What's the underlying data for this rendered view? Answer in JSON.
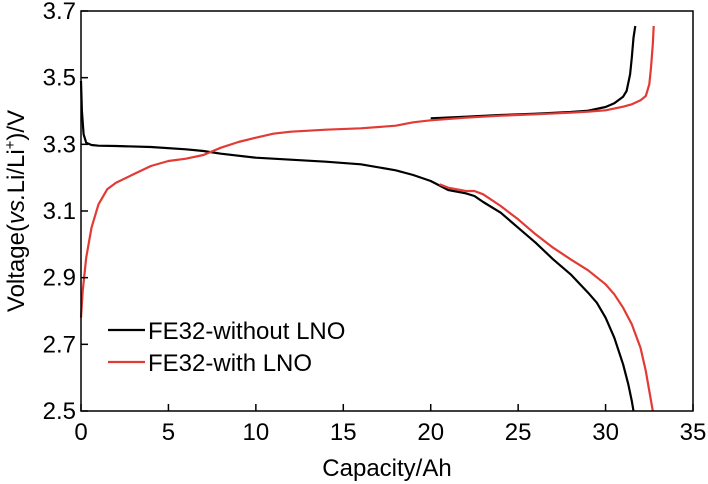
{
  "chart_data": {
    "type": "line",
    "xlabel": "Capacity/Ah",
    "ylabel_parts": [
      "Voltage(",
      "vs.",
      "Li/Li",
      "+",
      ")/V"
    ],
    "xlim": [
      0,
      35
    ],
    "ylim": [
      2.5,
      3.7
    ],
    "xticks": [
      0,
      5,
      10,
      15,
      20,
      25,
      30,
      35
    ],
    "xtick_labels": [
      "0",
      "5",
      "10",
      "15",
      "20",
      "25",
      "30",
      "35"
    ],
    "yticks": [
      2.5,
      2.7,
      2.9,
      3.1,
      3.3,
      3.5,
      3.7
    ],
    "ytick_labels": [
      "2.5",
      "2.7",
      "2.9",
      "3.1",
      "3.3",
      "3.5",
      "3.7"
    ],
    "legend_position": "bottom-left",
    "series": [
      {
        "name": "FE32-without LNO",
        "color": "#000000",
        "segments": [
          [
            [
              0.0,
              3.49
            ],
            [
              0.05,
              3.4
            ],
            [
              0.15,
              3.33
            ],
            [
              0.3,
              3.305
            ],
            [
              0.6,
              3.298
            ],
            [
              1.0,
              3.296
            ],
            [
              2,
              3.295
            ],
            [
              4,
              3.292
            ],
            [
              6,
              3.285
            ],
            [
              7,
              3.28
            ],
            [
              8,
              3.272
            ],
            [
              10,
              3.26
            ],
            [
              12,
              3.254
            ],
            [
              14,
              3.248
            ],
            [
              16,
              3.24
            ],
            [
              18,
              3.222
            ],
            [
              19,
              3.208
            ],
            [
              20,
              3.19
            ],
            [
              21,
              3.163
            ],
            [
              22,
              3.153
            ],
            [
              22.5,
              3.145
            ],
            [
              23,
              3.127
            ],
            [
              24,
              3.095
            ],
            [
              25,
              3.05
            ],
            [
              26,
              3.005
            ],
            [
              27,
              2.955
            ],
            [
              28,
              2.91
            ],
            [
              29,
              2.855
            ],
            [
              29.5,
              2.825
            ],
            [
              30,
              2.78
            ],
            [
              30.5,
              2.72
            ],
            [
              31,
              2.64
            ],
            [
              31.3,
              2.58
            ],
            [
              31.5,
              2.53
            ],
            [
              31.6,
              2.5
            ]
          ],
          [
            [
              20,
              3.378
            ],
            [
              22,
              3.383
            ],
            [
              24,
              3.388
            ],
            [
              26,
              3.392
            ],
            [
              28,
              3.397
            ],
            [
              29,
              3.401
            ],
            [
              30,
              3.412
            ],
            [
              30.5,
              3.423
            ],
            [
              31,
              3.443
            ],
            [
              31.2,
              3.46
            ],
            [
              31.4,
              3.51
            ],
            [
              31.5,
              3.56
            ],
            [
              31.6,
              3.62
            ],
            [
              31.7,
              3.655
            ]
          ]
        ]
      },
      {
        "name": "FE32-with LNO",
        "color": "#e23a35",
        "segments": [
          [
            [
              0.0,
              2.78
            ],
            [
              0.1,
              2.86
            ],
            [
              0.3,
              2.96
            ],
            [
              0.6,
              3.05
            ],
            [
              1,
              3.12
            ],
            [
              1.5,
              3.165
            ],
            [
              2,
              3.185
            ],
            [
              3,
              3.21
            ],
            [
              4,
              3.235
            ],
            [
              5,
              3.25
            ],
            [
              6,
              3.257
            ],
            [
              7,
              3.268
            ],
            [
              8,
              3.29
            ],
            [
              9,
              3.307
            ],
            [
              10,
              3.32
            ],
            [
              11,
              3.332
            ],
            [
              12,
              3.338
            ],
            [
              14,
              3.344
            ],
            [
              16,
              3.348
            ],
            [
              18,
              3.356
            ],
            [
              19,
              3.366
            ],
            [
              20,
              3.372
            ],
            [
              22,
              3.38
            ],
            [
              24,
              3.386
            ],
            [
              26,
              3.39
            ],
            [
              28,
              3.395
            ],
            [
              29,
              3.398
            ],
            [
              30,
              3.402
            ],
            [
              31,
              3.413
            ],
            [
              31.5,
              3.42
            ],
            [
              32,
              3.432
            ],
            [
              32.3,
              3.445
            ],
            [
              32.5,
              3.48
            ],
            [
              32.6,
              3.53
            ],
            [
              32.7,
              3.6
            ],
            [
              32.75,
              3.655
            ]
          ],
          [
            [
              20.5,
              3.18
            ],
            [
              21,
              3.17
            ],
            [
              22,
              3.16
            ],
            [
              22.5,
              3.16
            ],
            [
              23,
              3.15
            ],
            [
              24,
              3.115
            ],
            [
              25,
              3.075
            ],
            [
              26,
              3.03
            ],
            [
              27,
              2.99
            ],
            [
              28,
              2.955
            ],
            [
              29,
              2.922
            ],
            [
              30,
              2.88
            ],
            [
              30.5,
              2.85
            ],
            [
              31,
              2.81
            ],
            [
              31.5,
              2.76
            ],
            [
              32,
              2.69
            ],
            [
              32.3,
              2.62
            ],
            [
              32.5,
              2.56
            ],
            [
              32.7,
              2.5
            ]
          ]
        ]
      }
    ]
  }
}
